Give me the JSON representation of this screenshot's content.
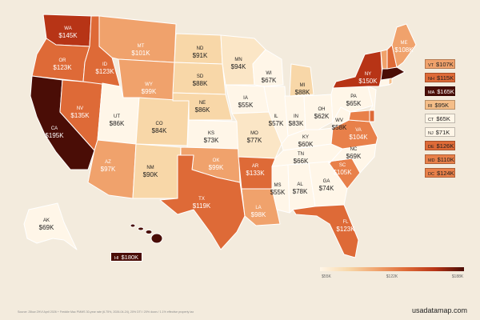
{
  "map": {
    "source": "Source: Zillow ZHVI April 2026 + Freddie Mac PMMS 30-year rate (6.75%, 2026-04-24), 20% DTI / 20% down / 1.1% effective property tax",
    "brand": "usadatamap.com",
    "legend": {
      "min_label": "$55K",
      "mid_label": "$122K",
      "max_label": "$188K"
    },
    "colors": {
      "darkest": "#4a0d06",
      "dark": "#b73416",
      "orange": "#de6a37",
      "light_orange": "#f0a26c",
      "peach": "#f8d7a8",
      "cream": "#fff6e8",
      "land_border": "#ffffff",
      "background": "#f3ebdd"
    }
  },
  "states": [
    {
      "abbr": "WA",
      "value": "$145K"
    },
    {
      "abbr": "OR",
      "value": "$123K"
    },
    {
      "abbr": "CA",
      "value": "$195K"
    },
    {
      "abbr": "NV",
      "value": "$135K"
    },
    {
      "abbr": "ID",
      "value": "$123K"
    },
    {
      "abbr": "MT",
      "value": "$101K"
    },
    {
      "abbr": "WY",
      "value": "$99K"
    },
    {
      "abbr": "UT",
      "value": "$86K"
    },
    {
      "abbr": "AZ",
      "value": "$97K"
    },
    {
      "abbr": "CO",
      "value": "$84K"
    },
    {
      "abbr": "NM",
      "value": "$90K"
    },
    {
      "abbr": "ND",
      "value": "$91K"
    },
    {
      "abbr": "SD",
      "value": "$88K"
    },
    {
      "abbr": "NE",
      "value": "$86K"
    },
    {
      "abbr": "KS",
      "value": "$73K"
    },
    {
      "abbr": "OK",
      "value": "$99K"
    },
    {
      "abbr": "TX",
      "value": "$119K"
    },
    {
      "abbr": "MN",
      "value": "$94K"
    },
    {
      "abbr": "IA",
      "value": "$55K"
    },
    {
      "abbr": "MO",
      "value": "$77K"
    },
    {
      "abbr": "AR",
      "value": "$133K"
    },
    {
      "abbr": "LA",
      "value": "$98K"
    },
    {
      "abbr": "WI",
      "value": "$67K"
    },
    {
      "abbr": "IL",
      "value": "$57K"
    },
    {
      "abbr": "MI",
      "value": "$88K"
    },
    {
      "abbr": "IN",
      "value": "$83K"
    },
    {
      "abbr": "OH",
      "value": "$62K"
    },
    {
      "abbr": "KY",
      "value": "$60K"
    },
    {
      "abbr": "TN",
      "value": "$66K"
    },
    {
      "abbr": "MS",
      "value": "$55K"
    },
    {
      "abbr": "AL",
      "value": "$78K"
    },
    {
      "abbr": "GA",
      "value": "$74K"
    },
    {
      "abbr": "FL",
      "value": "$123K"
    },
    {
      "abbr": "SC",
      "value": "$105K"
    },
    {
      "abbr": "NC",
      "value": "$69K"
    },
    {
      "abbr": "VA",
      "value": "$104K"
    },
    {
      "abbr": "WV",
      "value": "$58K"
    },
    {
      "abbr": "PA",
      "value": "$65K"
    },
    {
      "abbr": "NY",
      "value": "$150K"
    },
    {
      "abbr": "ME",
      "value": "$108K"
    },
    {
      "abbr": "AK",
      "value": "$69K"
    }
  ],
  "side_boxes": [
    {
      "abbr": "VT",
      "value": "$107K",
      "color": "#f0a26c"
    },
    {
      "abbr": "NH",
      "value": "$115K",
      "color": "#de6a37"
    },
    {
      "abbr": "MA",
      "value": "$165K",
      "color": "#4a0d06"
    },
    {
      "abbr": "RI",
      "value": "$95K",
      "color": "#f5be88"
    },
    {
      "abbr": "CT",
      "value": "$65K",
      "color": "#fff6e8"
    },
    {
      "abbr": "NJ",
      "value": "$71K",
      "color": "#fff6e8"
    },
    {
      "abbr": "DE",
      "value": "$126K",
      "color": "#de6a37"
    },
    {
      "abbr": "MD",
      "value": "$110K",
      "color": "#e8804a"
    },
    {
      "abbr": "DC",
      "value": "$124K",
      "color": "#e8804a"
    }
  ],
  "hawaii": {
    "abbr": "HI",
    "value": "$180K"
  }
}
